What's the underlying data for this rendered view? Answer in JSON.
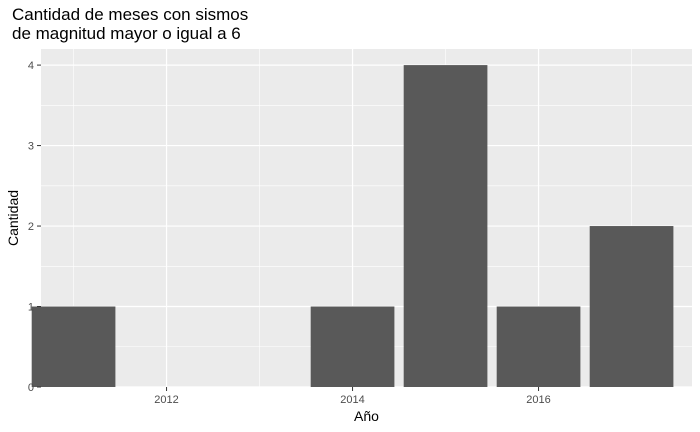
{
  "chart_data": {
    "type": "bar",
    "title": [
      "Cantidad de meses con sismos",
      "de magnitud mayor o igual a 6"
    ],
    "xlabel": "Año",
    "ylabel": "Cantidad",
    "x": [
      2011,
      2014,
      2015,
      2016,
      2017
    ],
    "values": [
      1,
      1,
      4,
      1,
      2
    ],
    "xlim": [
      2010.65,
      2017.65
    ],
    "ylim": [
      0,
      4.2
    ],
    "x_ticks": [
      2012,
      2014,
      2016
    ],
    "y_ticks": [
      0,
      1,
      2,
      3,
      4
    ],
    "bar_width_years": 0.9,
    "grid": true,
    "colors": {
      "bar": "#595959",
      "panel": "#ebebeb",
      "grid": "#ffffff"
    }
  }
}
